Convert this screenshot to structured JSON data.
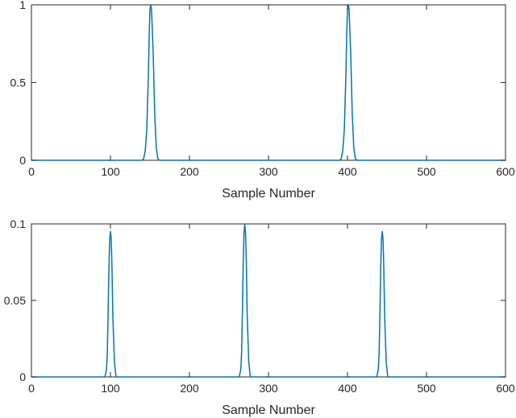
{
  "chart_data": [
    {
      "type": "line",
      "title": "",
      "xlabel": "Sample Number",
      "ylabel": "",
      "xlim": [
        0,
        600
      ],
      "ylim": [
        0,
        1
      ],
      "xticks": [
        0,
        100,
        200,
        300,
        400,
        500,
        600
      ],
      "xtick_labels": [
        "0",
        "100",
        "200",
        "300",
        "400",
        "500",
        "600"
      ],
      "yticks": [
        0,
        0.5,
        1
      ],
      "ytick_labels": [
        "0",
        "0.5",
        "1"
      ],
      "grid": false,
      "legend": false,
      "series": [
        {
          "color": "#0072BD",
          "x": [
            0,
            140,
            142,
            144,
            146,
            148,
            149,
            150,
            151,
            152,
            154,
            156,
            158,
            160,
            162,
            390,
            392,
            394,
            396,
            398,
            399,
            400,
            401,
            402,
            404,
            406,
            408,
            410,
            412,
            600
          ],
          "y": [
            0,
            0,
            0.01,
            0.06,
            0.2,
            0.55,
            0.8,
            0.97,
            1.0,
            0.97,
            0.7,
            0.3,
            0.08,
            0.01,
            0,
            0,
            0.01,
            0.06,
            0.2,
            0.55,
            0.8,
            0.97,
            1.0,
            0.97,
            0.7,
            0.3,
            0.08,
            0.01,
            0,
            0
          ]
        }
      ]
    },
    {
      "type": "line",
      "title": "",
      "xlabel": "Sample Number",
      "ylabel": "",
      "xlim": [
        0,
        600
      ],
      "ylim": [
        0,
        0.1
      ],
      "xticks": [
        0,
        100,
        200,
        300,
        400,
        500,
        600
      ],
      "xtick_labels": [
        "0",
        "100",
        "200",
        "300",
        "400",
        "500",
        "600"
      ],
      "yticks": [
        0,
        0.05,
        0.1
      ],
      "ytick_labels": [
        "0",
        "0.05",
        "0.1"
      ],
      "grid": false,
      "legend": false,
      "series": [
        {
          "color": "#0072BD",
          "x": [
            0,
            93,
            95,
            96,
            97,
            98,
            99,
            100,
            101,
            102,
            103,
            105,
            107,
            263,
            265,
            266,
            267,
            268,
            269,
            270,
            271,
            272,
            273,
            275,
            277,
            437,
            439,
            440,
            441,
            442,
            443,
            444,
            445,
            446,
            447,
            449,
            451,
            600
          ],
          "y": [
            0,
            0,
            0.005,
            0.015,
            0.04,
            0.07,
            0.09,
            0.095,
            0.09,
            0.07,
            0.04,
            0.01,
            0,
            0,
            0.005,
            0.016,
            0.042,
            0.074,
            0.094,
            0.1,
            0.094,
            0.074,
            0.042,
            0.01,
            0,
            0,
            0.005,
            0.015,
            0.04,
            0.07,
            0.09,
            0.095,
            0.09,
            0.07,
            0.04,
            0.01,
            0,
            0
          ]
        }
      ]
    }
  ]
}
